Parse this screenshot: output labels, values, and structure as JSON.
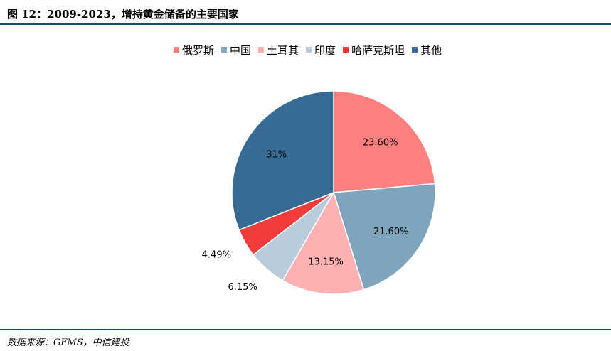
{
  "title": "图 12：2009-2023，增持黄金储备的主要国家",
  "source": "数据来源：GFMS，中信建投",
  "chart_data": {
    "type": "pie",
    "legend_position": "top",
    "slices": [
      {
        "name": "俄罗斯",
        "value": 23.6,
        "label": "23.60%",
        "color": "#ff7f7f"
      },
      {
        "name": "中国",
        "value": 21.6,
        "label": "21.60%",
        "color": "#7fa4bd"
      },
      {
        "name": "土耳其",
        "value": 13.15,
        "label": "13.15%",
        "color": "#ffb0b2"
      },
      {
        "name": "印度",
        "value": 6.15,
        "label": "6.15%",
        "color": "#b8ccdb"
      },
      {
        "name": "哈萨克斯坦",
        "value": 4.49,
        "label": "4.49%",
        "color": "#f23b3b"
      },
      {
        "name": "其他",
        "value": 31,
        "label": "31%",
        "color": "#376b94"
      }
    ]
  }
}
